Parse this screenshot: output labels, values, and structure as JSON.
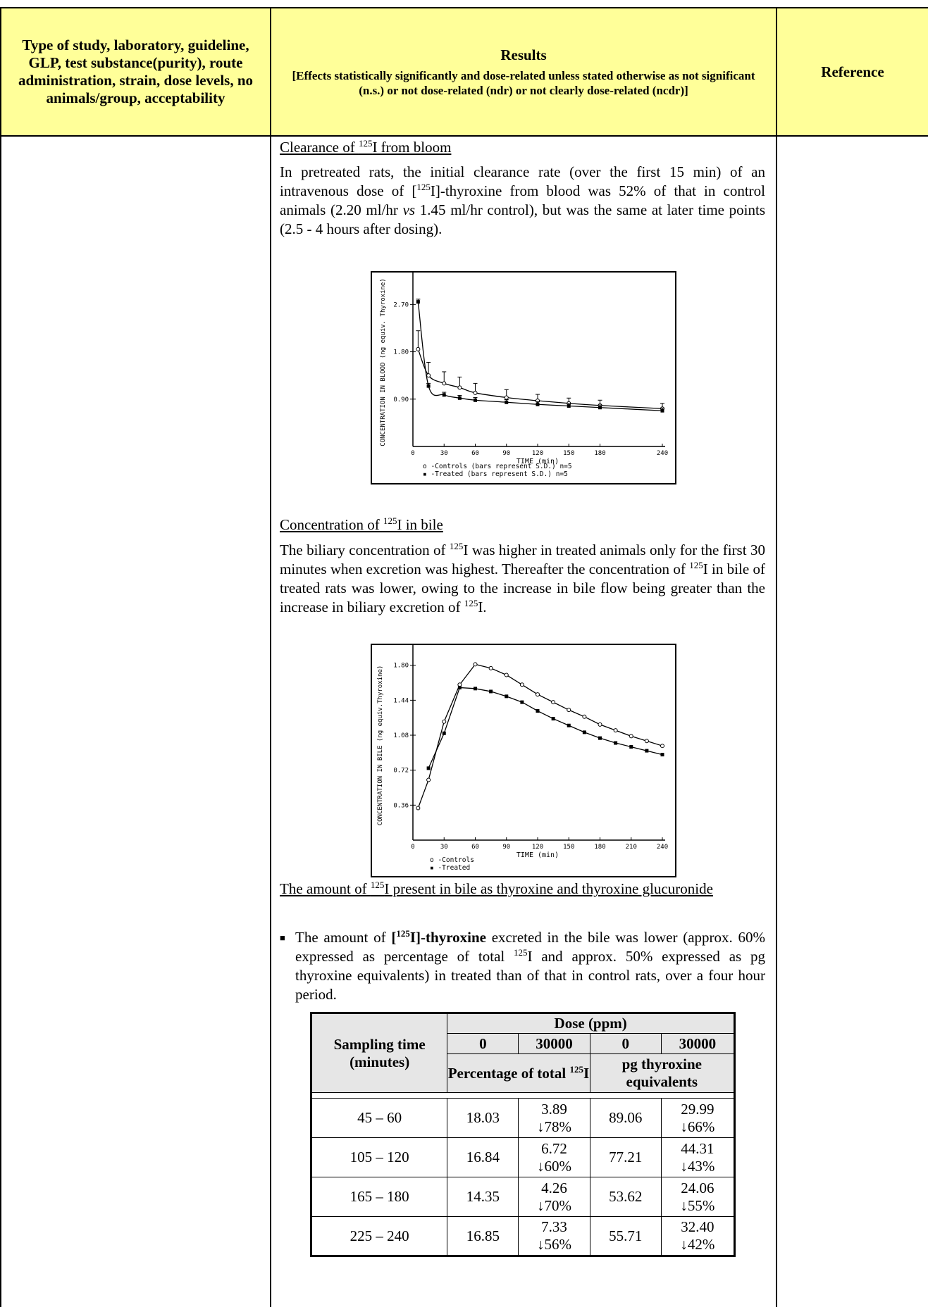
{
  "header": {
    "col1": "Type of study, laboratory, guideline, GLP, test substance(purity), route administration, strain, dose levels, no animals/group, acceptability",
    "col2_title": "Results",
    "col2_sub": "[Effects statistically significantly and dose-related unless stated otherwise as not significant (n.s.) or not dose-related (ndr) or not clearly dose-related (ncdr)]",
    "col3": "Reference"
  },
  "s1": {
    "heading_pre": "Clearance of ",
    "heading_sup": "125",
    "heading_post": "I from bloom",
    "p_a": "In pretreated rats, the initial clearance rate (over the first 15 min) of an intravenous dose of [",
    "p_sup": "125",
    "p_b": "I]-thyroxine from blood was 52% of that in control animals (2.20 ml/hr ",
    "p_vs": "vs",
    "p_c": " 1.45 ml/hr control), but was the same at later time points (2.5 - 4 hours after dosing)."
  },
  "chart_data": [
    {
      "type": "line",
      "xlabel": "TIME (min)",
      "ylabel": "CONCENTRATION IN BLOOD (ng equiv. Thyroxine)",
      "xticks": [
        "0",
        "30",
        "60",
        "90",
        "120",
        "150",
        "180",
        "240"
      ],
      "yticks": [
        "0.90",
        "1.80",
        "2.70"
      ],
      "xlim": [
        0,
        240
      ],
      "ylim": [
        0,
        3.2
      ],
      "legend": [
        "o -Controls (bars represent S.D.) n=5",
        "▪ -Treated (bars represent S.D.) n=5"
      ],
      "series": [
        {
          "marker": "open",
          "x": [
            5,
            15,
            30,
            45,
            60,
            90,
            120,
            150,
            180,
            240
          ],
          "y": [
            1.85,
            1.35,
            1.2,
            1.12,
            1.02,
            0.93,
            0.87,
            0.82,
            0.78,
            0.72
          ],
          "err": [
            0.35,
            0.25,
            0.22,
            0.2,
            0.18,
            0.15,
            0.12,
            0.1,
            0.1,
            0.1
          ]
        },
        {
          "marker": "filled",
          "x": [
            5,
            15,
            30,
            45,
            60,
            90,
            120,
            150,
            180,
            240
          ],
          "y": [
            2.75,
            1.15,
            0.98,
            0.92,
            0.88,
            0.84,
            0.8,
            0.77,
            0.74,
            0.68
          ],
          "err": [
            0.05,
            0.05,
            0.05,
            0.05,
            0.05,
            0.05,
            0.05,
            0.05,
            0.05,
            0.05
          ]
        }
      ]
    },
    {
      "type": "line",
      "xlabel": "TIME (min)",
      "ylabel": "CONCENTRATION IN BILE (ng equiv.Thyroxine)",
      "xticks": [
        "0",
        "30",
        "60",
        "90",
        "120",
        "150",
        "180",
        "210",
        "240"
      ],
      "yticks": [
        "0.36",
        "0.72",
        "1.08",
        "1.44",
        "1.80"
      ],
      "xlim": [
        0,
        240
      ],
      "ylim": [
        0,
        1.95
      ],
      "legend": [
        "o -Controls",
        "▪ -Treated"
      ],
      "series": [
        {
          "marker": "open",
          "x": [
            5,
            15,
            30,
            45,
            60,
            75,
            90,
            105,
            120,
            135,
            150,
            165,
            180,
            195,
            210,
            225,
            240
          ],
          "y": [
            0.33,
            0.62,
            1.22,
            1.6,
            1.81,
            1.77,
            1.7,
            1.6,
            1.5,
            1.42,
            1.34,
            1.27,
            1.19,
            1.13,
            1.07,
            1.02,
            0.97
          ]
        },
        {
          "marker": "filled",
          "x": [
            15,
            30,
            45,
            60,
            75,
            90,
            105,
            120,
            135,
            150,
            165,
            180,
            195,
            210,
            225,
            240
          ],
          "y": [
            0.74,
            1.1,
            1.57,
            1.56,
            1.53,
            1.48,
            1.42,
            1.33,
            1.25,
            1.18,
            1.11,
            1.05,
            1.0,
            0.96,
            0.92,
            0.88
          ]
        }
      ]
    }
  ],
  "s2": {
    "heading_pre": "Concentration of ",
    "heading_sup": "125",
    "heading_post": "I in bile",
    "p_a": "The biliary concentration of ",
    "p_sup1": "125",
    "p_b": "I was higher in treated animals only for the first 30 minutes when excretion was highest. Thereafter the concentration of ",
    "p_sup2": "125",
    "p_c": "I in bile of treated rats was lower, owing to the increase in bile flow being greater than the increase in biliary excretion of ",
    "p_sup3": "125",
    "p_d": "I."
  },
  "s3": {
    "heading_pre": "The amount of ",
    "heading_sup": "125",
    "heading_post": "I present in bile as thyroxine and thyroxine glucuronide",
    "bullet_a": "The amount of ",
    "bullet_bold_pre": "[",
    "bullet_bold_sup": "125",
    "bullet_bold_post": "I]-thyroxine",
    "bullet_b": " excreted in the bile was lower (approx. 60% expressed as percentage of total ",
    "bullet_sup": "125",
    "bullet_c": "I and approx. 50% expressed as pg thyroxine equivalents) in treated than of that in control rats, over a four hour period."
  },
  "table": {
    "dose_header": "Dose (ppm)",
    "sampling_header": "Sampling time (minutes)",
    "doses": [
      "0",
      "30000",
      "0",
      "30000"
    ],
    "group1_pre": "Percentage of total ",
    "group1_sup": "125",
    "group1_post": "I",
    "group2": "pg thyroxine equivalents",
    "rows": [
      {
        "time": "45 –  60",
        "c1": "18.03",
        "c2v": "3.89",
        "c2p": "↓78%",
        "c3": "89.06",
        "c4v": "29.99",
        "c4p": "↓66%"
      },
      {
        "time": "105 – 120",
        "c1": "16.84",
        "c2v": "6.72",
        "c2p": "↓60%",
        "c3": "77.21",
        "c4v": "44.31",
        "c4p": "↓43%"
      },
      {
        "time": "165 – 180",
        "c1": "14.35",
        "c2v": "4.26",
        "c2p": "↓70%",
        "c3": "53.62",
        "c4v": "24.06",
        "c4p": "↓55%"
      },
      {
        "time": "225 – 240",
        "c1": "16.85",
        "c2v": "7.33",
        "c2p": "↓56%",
        "c3": "55.71",
        "c4v": "32.40",
        "c4p": "↓42%"
      }
    ]
  }
}
